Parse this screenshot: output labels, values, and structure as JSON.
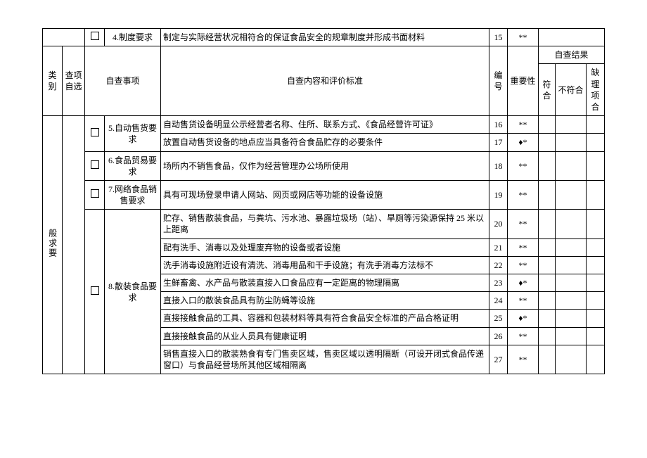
{
  "headers": {
    "category": "类别",
    "self_select": "查项自选",
    "inspection_item": "自查事项",
    "criteria": "自查内容和评价标准",
    "number_col": "编号",
    "importance": "重要性",
    "self_result": "自查结果",
    "pass": "符合",
    "fail": "不符合",
    "missing": "缺理项合",
    "general_req": "般求要"
  },
  "row4": {
    "item": "4.制度要求",
    "criterion": "制定与实际经营状况相符合的保证食品安全的规章制度并形成书面材料",
    "num": "15",
    "imp": "**"
  },
  "item5": {
    "label": "5.自动售货要求",
    "r1_criterion": "自动售货设备明显公示经营者名称、住所、联系方式、《食品经营许可证》",
    "r1_num": "16",
    "r1_imp": "**",
    "r2_criterion": "放置自动售货设备的地点应当具备符合食品贮存的必要条件",
    "r2_num": "17",
    "r2_imp": "♦*"
  },
  "item6": {
    "label": "6.食品贸易要求",
    "criterion": "场所内不销售食品，仅作为经营管理办公场所使用",
    "num": "18",
    "imp": "**"
  },
  "item7": {
    "label": "7.网络食品销售要求",
    "criterion": "具有可现场登录申请人网站、网页或网店等功能的设备设施",
    "num": "19",
    "imp": "**"
  },
  "item8": {
    "label": "8.散装食品要求",
    "r1_criterion": "贮存、销售散装食品，与粪坑、污水池、暴露垃圾场（站）、旱厕等污染源保持 25 米以上距离",
    "r1_num": "20",
    "r1_imp": "**",
    "r2_criterion": "配有洗手、消毒以及处理废弃物的设备或者设施",
    "r2_num": "21",
    "r2_imp": "**",
    "r3_criterion": "洗手消毒设施附近设有清洗、消毒用品和干手设施；有洗手消毒方法标不",
    "r3_num": "22",
    "r3_imp": "**",
    "r4_criterion": "生鲜畜禽、水产品与散装直接入口食品应有一定距离的物理隔离",
    "r4_num": "23",
    "r4_imp": "♦*",
    "r5_criterion": "直接入口的散装食品具有防尘防蝇等设施",
    "r5_num": "24",
    "r5_imp": "**",
    "r6_criterion": "直接接触食品的工具、容器和包装材料等具有符合食品安全标准的产品合格证明",
    "r6_num": "25",
    "r6_imp": "♦*",
    "r7_criterion": "直接接触食品的从业人员具有健康证明",
    "r7_num": "26",
    "r7_imp": "**",
    "r8_criterion": "销售直接入口的散装熟食有专门售卖区域，售卖区域以透明隔断（可设开闭式食品传递窗口）与食品经营场所其他区域相隔离",
    "r8_num": "27",
    "r8_imp": "**"
  }
}
